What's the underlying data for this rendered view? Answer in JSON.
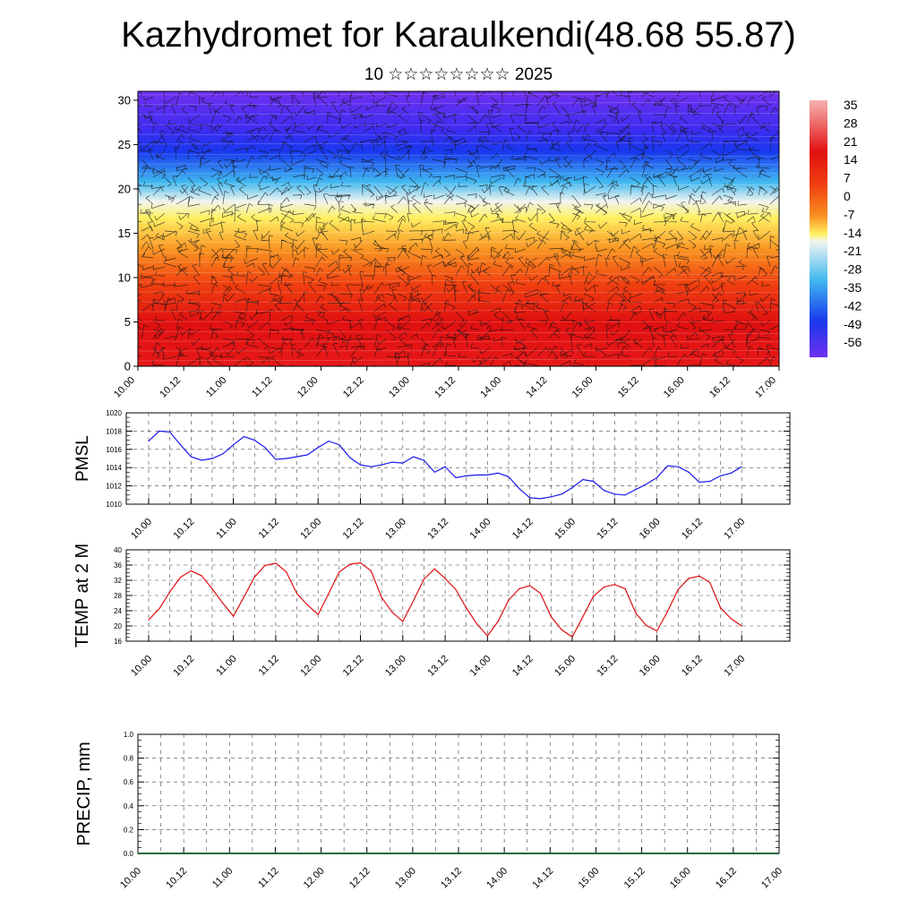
{
  "header": {
    "title": "Kazhydromet for Karaulkendi(48.68 55.87)",
    "subtitle": "10 ☆☆☆☆☆☆☆☆ 2025"
  },
  "chart_data": [
    {
      "type": "heatmap",
      "title": "Kazhydromet for Karaulkendi(48.68 55.87)",
      "x_ticks": [
        "10.00",
        "10.12",
        "11.00",
        "11.12",
        "12.00",
        "12.12",
        "13.00",
        "13.12",
        "14.00",
        "14.12",
        "15.00",
        "15.12",
        "16.00",
        "16.12",
        "17.00"
      ],
      "y_ticks": [
        0,
        5,
        10,
        15,
        20,
        25,
        30
      ],
      "ylim": [
        0,
        31
      ],
      "colorbar_labels": [
        "35",
        "28",
        "21",
        "14",
        "7",
        "0",
        "-7",
        "-14",
        "-21",
        "-28",
        "-35",
        "-42",
        "-49",
        "-56"
      ],
      "colors": {
        "warm_surface": "#f07a78",
        "hot": "#e01010",
        "red_orange": "#f04010",
        "orange": "#f89020",
        "yellow": "#fff060",
        "pale": "#f0f4f0",
        "cyan": "#40b8f0",
        "blue": "#1838ee",
        "violet": "#7030f0"
      },
      "grid": false
    },
    {
      "type": "line",
      "ylabel": "PMSL",
      "ylim": [
        1010,
        1020
      ],
      "y_ticks": [
        "1010",
        "1012",
        "1014",
        "1016",
        "1018",
        "1020"
      ],
      "x_ticks": [
        "10.00",
        "10.12",
        "11.00",
        "11.12",
        "12.00",
        "12.12",
        "13.00",
        "13.12",
        "14.00",
        "14.12",
        "15.00",
        "15.12",
        "16.00",
        "16.12",
        "17.00"
      ],
      "x_step_hours": 3,
      "values": [
        1016.9,
        1018.0,
        1017.9,
        1016.5,
        1015.2,
        1014.8,
        1015.0,
        1015.5,
        1016.5,
        1017.4,
        1017.0,
        1016.2,
        1014.9,
        1015.0,
        1015.2,
        1015.4,
        1016.2,
        1016.9,
        1016.5,
        1015.1,
        1014.3,
        1014.1,
        1014.3,
        1014.6,
        1014.5,
        1015.2,
        1014.8,
        1013.5,
        1014.1,
        1012.9,
        1013.1,
        1013.2,
        1013.2,
        1013.4,
        1013.0,
        1011.7,
        1010.7,
        1010.6,
        1010.8,
        1011.1,
        1011.8,
        1012.7,
        1012.5,
        1011.5,
        1011.1,
        1011.0,
        1011.6,
        1012.2,
        1012.9,
        1014.2,
        1014.1,
        1013.5,
        1012.4,
        1012.5,
        1013.1,
        1013.4,
        1014.1
      ],
      "colors": {
        "line": "#1a1aee"
      },
      "grid": true
    },
    {
      "type": "line",
      "ylabel": "TEMP at 2 M",
      "ylim": [
        16,
        40
      ],
      "y_ticks": [
        "16",
        "20",
        "24",
        "28",
        "32",
        "36",
        "40"
      ],
      "x_ticks": [
        "10.00",
        "10.12",
        "11.00",
        "11.12",
        "12.00",
        "12.12",
        "13.00",
        "13.12",
        "14.00",
        "14.12",
        "15.00",
        "15.12",
        "16.00",
        "16.12",
        "17.00"
      ],
      "x_step_hours": 3,
      "values": [
        21.6,
        24.5,
        29.0,
        32.8,
        34.5,
        33.2,
        29.8,
        26.0,
        22.6,
        27.6,
        32.9,
        35.9,
        36.5,
        34.2,
        28.5,
        25.5,
        23.0,
        28.5,
        34.2,
        36.2,
        36.6,
        34.5,
        27.5,
        23.6,
        21.2,
        26.6,
        32.3,
        35.0,
        32.5,
        29.6,
        24.7,
        20.5,
        17.4,
        21.2,
        26.8,
        29.8,
        30.6,
        28.6,
        22.5,
        19.0,
        17.1,
        22.4,
        27.8,
        30.2,
        30.9,
        29.8,
        23.4,
        20.1,
        18.7,
        23.8,
        29.6,
        32.5,
        33.1,
        31.4,
        24.8,
        21.9,
        20.0
      ],
      "colors": {
        "line": "#e01010"
      },
      "grid": true
    },
    {
      "type": "bar",
      "ylabel": "PRECIP, mm",
      "ylim": [
        0,
        1
      ],
      "y_ticks": [
        "0.0",
        "0.2",
        "0.4",
        "0.6",
        "0.8",
        "1.0"
      ],
      "x_ticks": [
        "10.00",
        "10.12",
        "11.00",
        "11.12",
        "12.00",
        "12.12",
        "13.00",
        "13.12",
        "14.00",
        "14.12",
        "15.00",
        "15.12",
        "16.00",
        "16.12",
        "17.00"
      ],
      "values": [],
      "colors": {
        "baseline": "#1a6a3a"
      },
      "grid": true
    }
  ]
}
